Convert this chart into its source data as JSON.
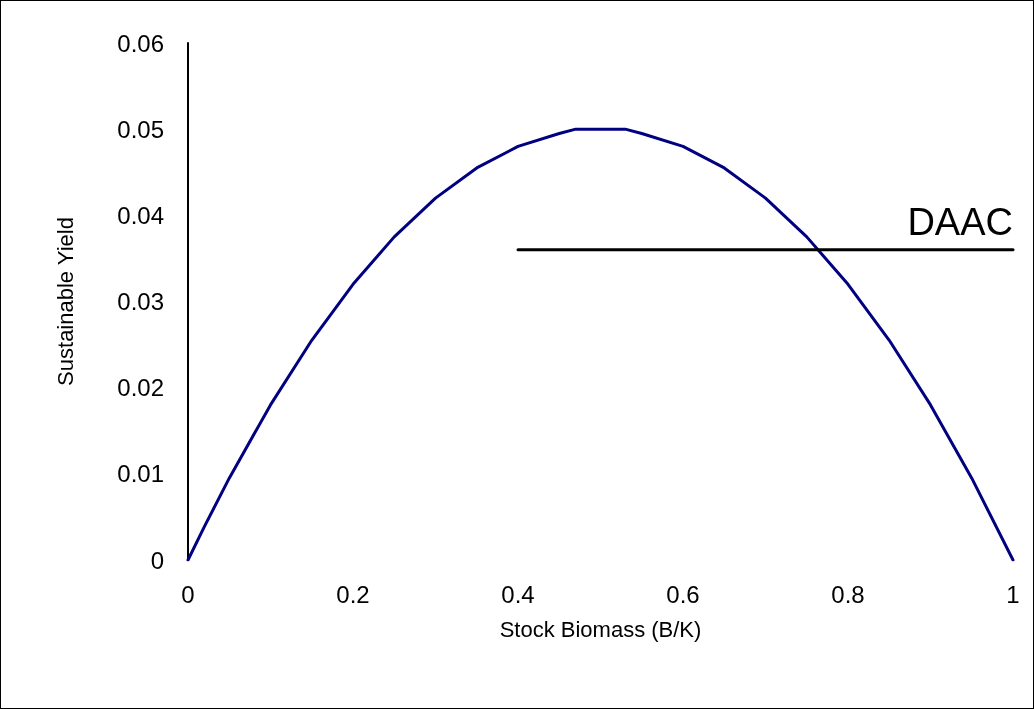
{
  "chart_data": {
    "type": "line",
    "xlabel": "Stock Biomass (B/K)",
    "ylabel": "Sustainable Yield",
    "x": [
      0,
      0.02,
      0.05,
      0.1,
      0.15,
      0.2,
      0.25,
      0.3,
      0.35,
      0.4,
      0.45,
      0.47,
      0.5,
      0.53,
      0.55,
      0.6,
      0.65,
      0.7,
      0.75,
      0.8,
      0.85,
      0.9,
      0.95,
      1
    ],
    "series": [
      {
        "color": "#000080",
        "values": [
          0,
          0.0039,
          0.0095,
          0.018,
          0.0255,
          0.032,
          0.0375,
          0.042,
          0.0455,
          0.048,
          0.0495,
          0.05,
          0.05,
          0.05,
          0.0495,
          0.048,
          0.0455,
          0.042,
          0.0375,
          0.032,
          0.0255,
          0.018,
          0.0095,
          0
        ]
      },
      {
        "name": "DAAC",
        "color": "#000000",
        "x": [
          0.4,
          1
        ],
        "values": [
          0.036,
          0.036
        ]
      }
    ],
    "xlim": [
      0,
      1
    ],
    "xticks": [
      0,
      0.2,
      0.4,
      0.6,
      0.8,
      1
    ],
    "ylim": [
      0,
      0.06
    ],
    "yticks": [
      0,
      0.01,
      0.02,
      0.03,
      0.04,
      0.05,
      0.06
    ],
    "grid": false,
    "legend": false,
    "marker": "none",
    "line_style": "solid"
  }
}
